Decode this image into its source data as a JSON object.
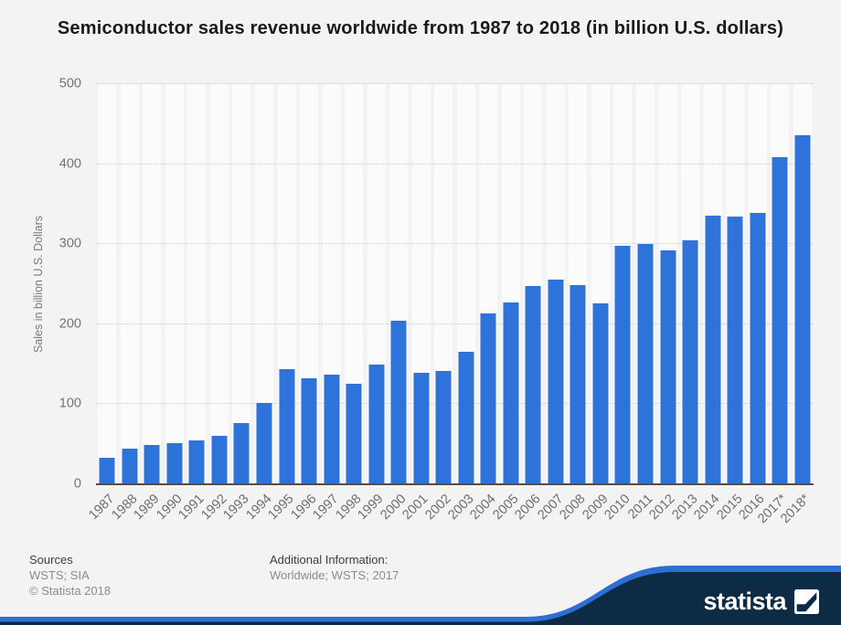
{
  "title": "Semiconductor sales revenue worldwide from 1987 to 2018 (in billion U.S. dollars)",
  "chart_data": {
    "type": "bar",
    "title": "Semiconductor sales revenue worldwide from 1987 to 2018 (in billion U.S. dollars)",
    "xlabel": "",
    "ylabel": "Sales in billion U.S. Dollars",
    "ylim": [
      0,
      500
    ],
    "yticks": [
      0,
      100,
      200,
      300,
      400,
      500
    ],
    "grid": "dotted horizontal",
    "legend": "none",
    "bar_color": "#2d73d9",
    "categories": [
      "1987",
      "1988",
      "1989",
      "1990",
      "1991",
      "1992",
      "1993",
      "1994",
      "1995",
      "1996",
      "1997",
      "1998",
      "1999",
      "2000",
      "2001",
      "2002",
      "2003",
      "2004",
      "2005",
      "2006",
      "2007",
      "2008",
      "2009",
      "2010",
      "2011",
      "2012",
      "2013",
      "2014",
      "2015",
      "2016",
      "2017*",
      "2018*"
    ],
    "values": [
      33,
      45,
      49,
      51,
      55,
      60,
      77,
      102,
      144,
      132,
      137,
      126,
      149,
      204,
      139,
      141,
      166,
      213,
      227,
      248,
      256,
      249,
      226,
      298,
      300,
      292,
      305,
      336,
      335,
      339,
      409,
      436
    ]
  },
  "footer": {
    "sources_label": "Sources",
    "sources_value": "WSTS; SIA",
    "copyright": "© Statista 2018",
    "additional_label": "Additional Information:",
    "additional_value": "Worldwide; WSTS; 2017",
    "brand": "statista"
  },
  "colors": {
    "background": "#f3f3f4",
    "bar": "#2d73d9",
    "wave_navy": "#0e2b45",
    "wave_accent": "#2e6fd3",
    "gridline": "#cccccd",
    "baseline": "#504e49"
  }
}
